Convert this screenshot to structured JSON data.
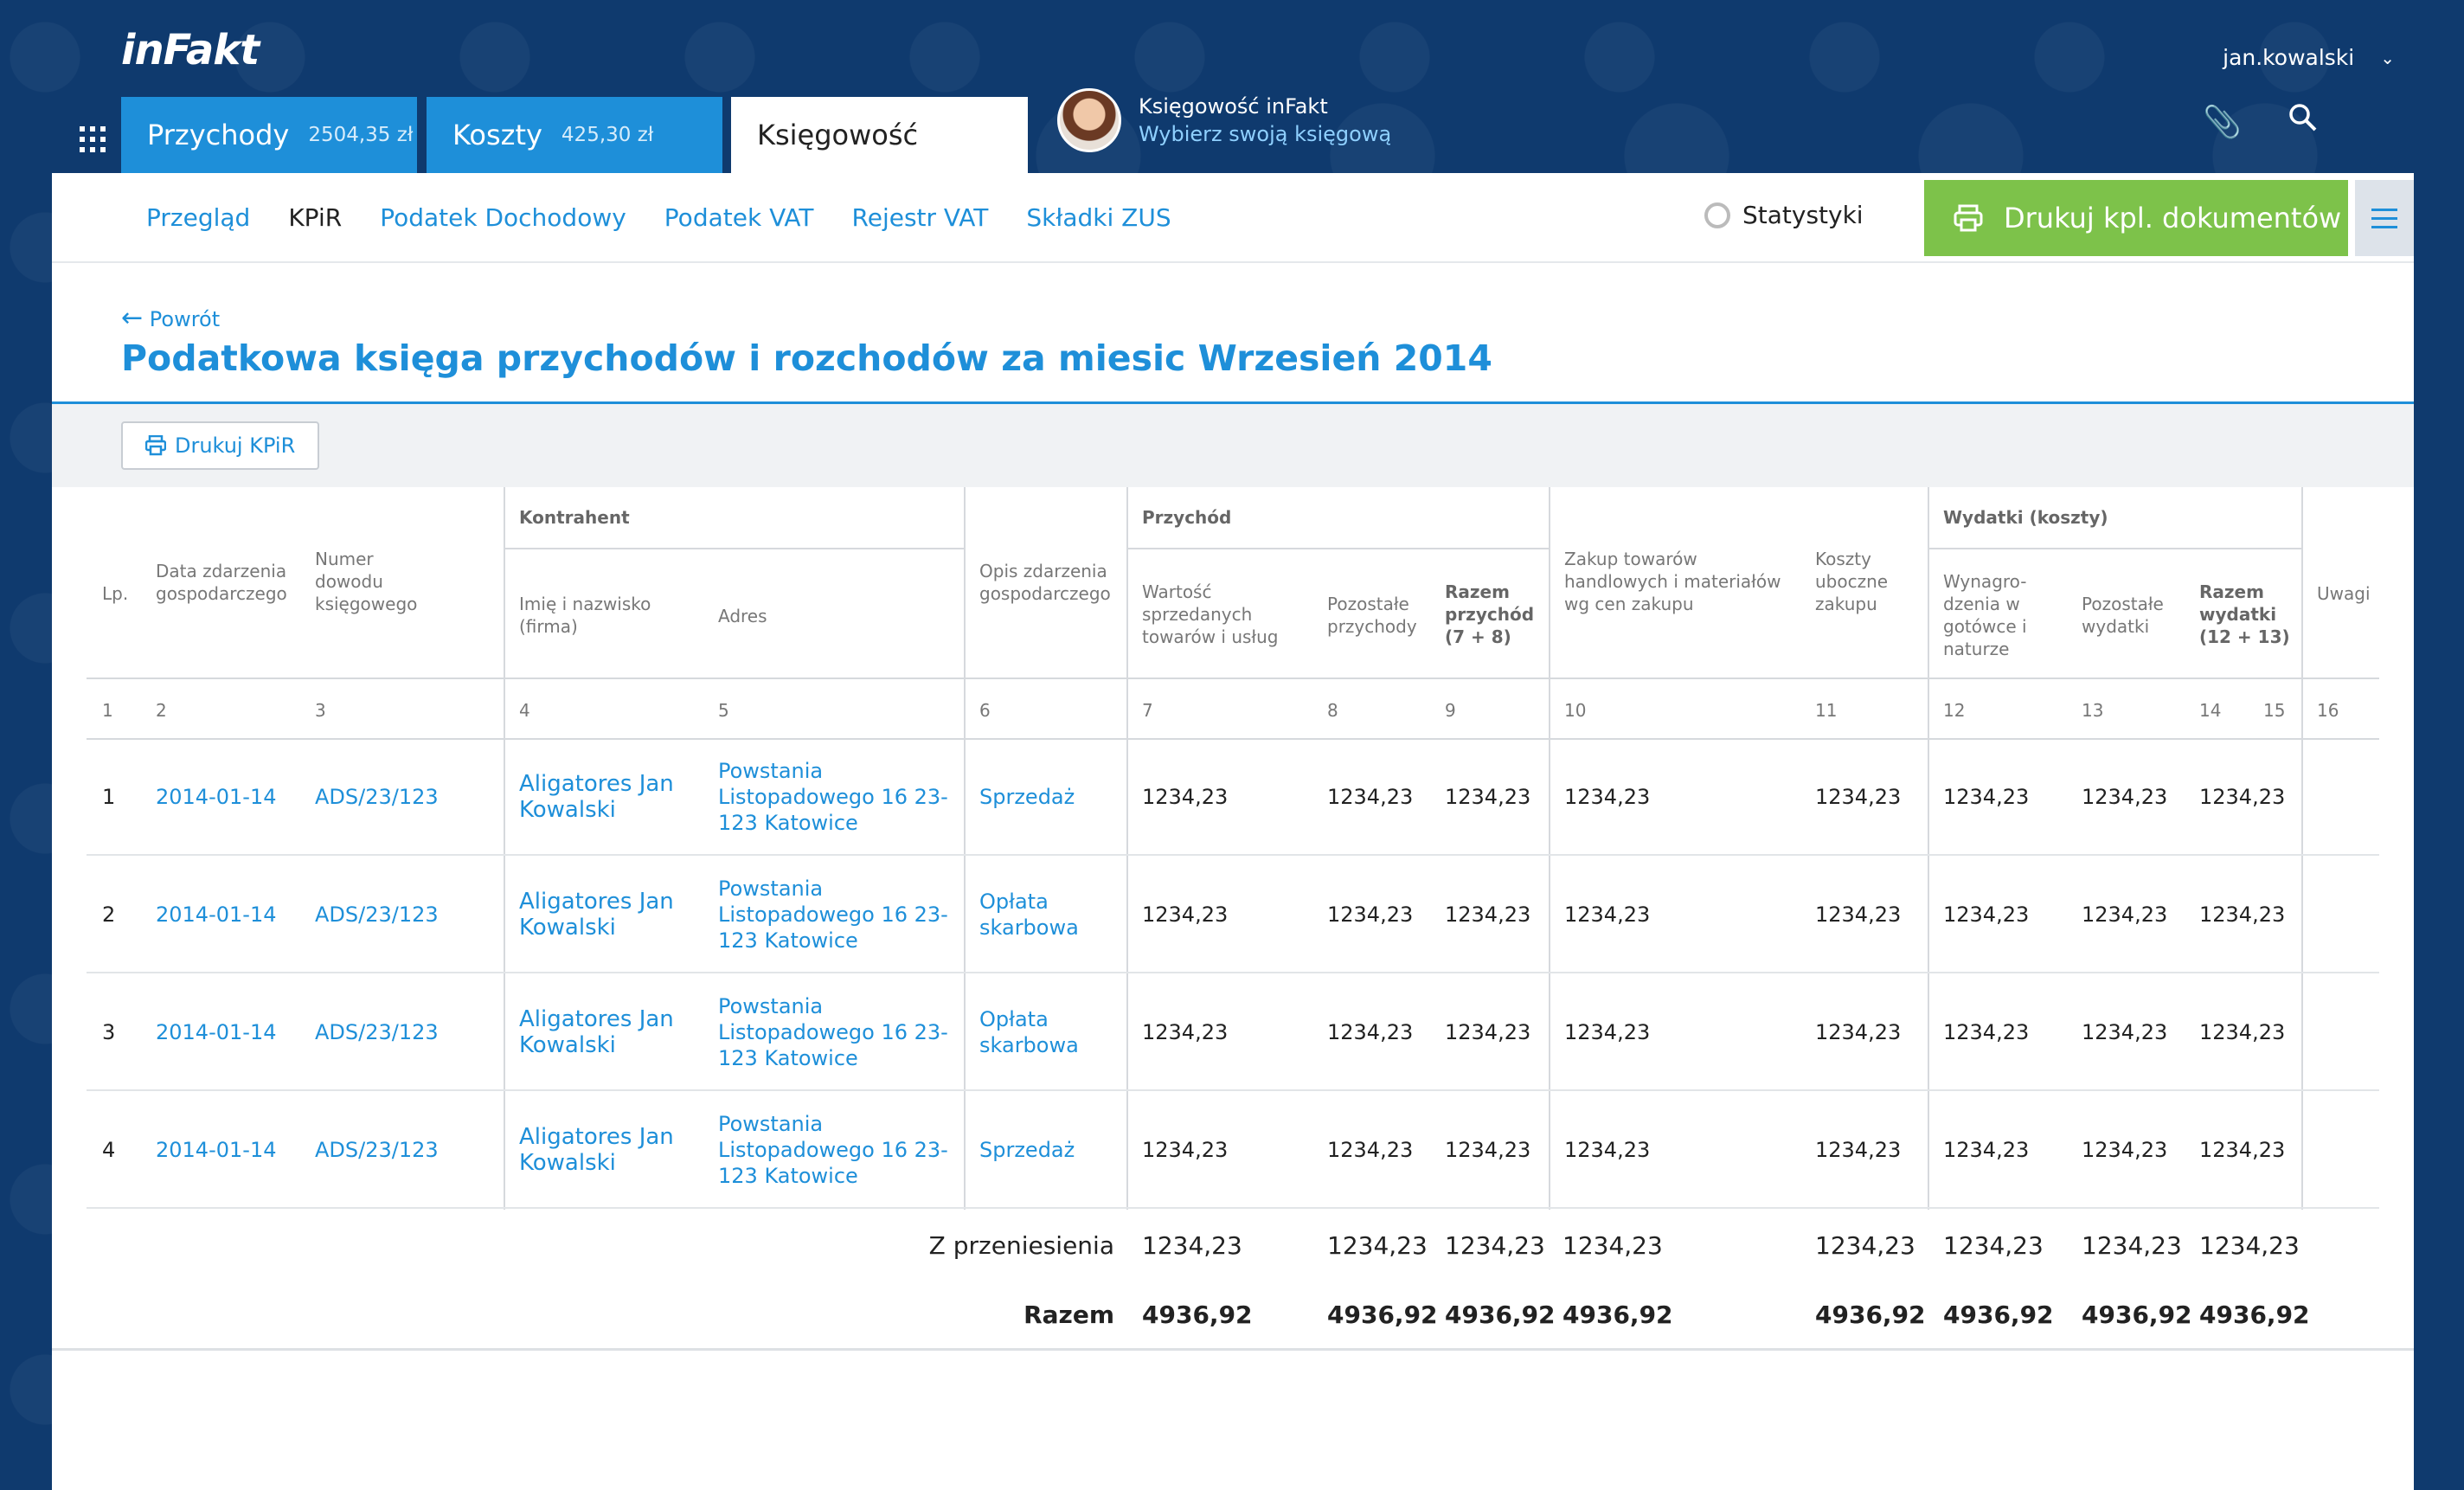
{
  "app": {
    "logo": "inFakt",
    "user": "jan.kowalski"
  },
  "tabs": [
    {
      "label": "Przychody",
      "amount": "2504,35 zł"
    },
    {
      "label": "Koszty",
      "amount": "425,30 zł"
    },
    {
      "label": "Księgowość"
    }
  ],
  "account": {
    "line1": "Księgowość inFakt",
    "line2": "Wybierz swoją księgową"
  },
  "subnav": [
    "Przegląd",
    "KPiR",
    "Podatek Dochodowy",
    "Podatek VAT",
    "Rejestr VAT",
    "Składki ZUS"
  ],
  "stats_label": "Statystyki",
  "print_docs_label": "Drukuj kpl. dokumentów",
  "back_label": "Powrót",
  "page_title": "Podatkowa księga przychodów i rozchodów za miesic Wrzesień 2014",
  "print_kpir_label": "Drukuj KPiR",
  "headers": {
    "lp": "Lp.",
    "date": "Data zdarzenia gospodarczego",
    "docnum": "Numer dowodu księgowego",
    "kontrahent": "Kontrahent",
    "name": "Imię i nazwisko (firma)",
    "address": "Adres",
    "desc": "Opis zdarzenia gospodarczego",
    "przychod": "Przychód",
    "sales": "Wartość sprzedanych towarów i usług",
    "other_income": "Pozostałe przychody",
    "total_income": "Razem przychód (7 + 8)",
    "purchase": "Zakup towarów handlowych i materiałów wg cen zakupu",
    "side_costs": "Koszty uboczne zakupu",
    "wydatki": "Wydatki (koszty)",
    "salaries": "Wynagro-dzenia w gotówce i naturze",
    "other_exp": "Pozostałe wydatki",
    "total_exp": "Razem wydatki (12 + 13)",
    "notes": "Uwagi"
  },
  "colnums": [
    "1",
    "2",
    "3",
    "4",
    "5",
    "6",
    "7",
    "8",
    "9",
    "10",
    "11",
    "12",
    "13",
    "14",
    "15",
    "16"
  ],
  "rows": [
    {
      "lp": "1",
      "date": "2014-01-14",
      "doc": "ADS/23/123",
      "name": "Aligatores Jan Kowalski",
      "addr": "Powstania Listopadowego 16 23-123 Katowice",
      "desc": "Sprzedaż",
      "v7": "1234,23",
      "v8": "1234,23",
      "v9": "1234,23",
      "v10": "1234,23",
      "v11": "1234,23",
      "v12": "1234,23",
      "v13": "1234,23",
      "v14": "1234,23"
    },
    {
      "lp": "2",
      "date": "2014-01-14",
      "doc": "ADS/23/123",
      "name": "Aligatores Jan Kowalski",
      "addr": "Powstania Listopadowego 16 23-123 Katowice",
      "desc": "Opłata skarbowa",
      "v7": "1234,23",
      "v8": "1234,23",
      "v9": "1234,23",
      "v10": "1234,23",
      "v11": "1234,23",
      "v12": "1234,23",
      "v13": "1234,23",
      "v14": "1234,23"
    },
    {
      "lp": "3",
      "date": "2014-01-14",
      "doc": "ADS/23/123",
      "name": "Aligatores Jan Kowalski",
      "addr": "Powstania Listopadowego 16 23-123 Katowice",
      "desc": "Opłata skarbowa",
      "v7": "1234,23",
      "v8": "1234,23",
      "v9": "1234,23",
      "v10": "1234,23",
      "v11": "1234,23",
      "v12": "1234,23",
      "v13": "1234,23",
      "v14": "1234,23"
    },
    {
      "lp": "4",
      "date": "2014-01-14",
      "doc": "ADS/23/123",
      "name": "Aligatores Jan Kowalski",
      "addr": "Powstania Listopadowego 16 23-123 Katowice",
      "desc": "Sprzedaż",
      "v7": "1234,23",
      "v8": "1234,23",
      "v9": "1234,23",
      "v10": "1234,23",
      "v11": "1234,23",
      "v12": "1234,23",
      "v13": "1234,23",
      "v14": "1234,23"
    }
  ],
  "carried": {
    "label": "Z przeniesienia",
    "v7": "1234,23",
    "v8": "1234,23",
    "v9": "1234,23",
    "v10": "1234,23",
    "v11": "1234,23",
    "v12": "1234,23",
    "v13": "1234,23",
    "v14": "1234,23"
  },
  "total": {
    "label": "Razem",
    "v7": "4936,92",
    "v8": "4936,92",
    "v9": "4936,92",
    "v10": "4936,92",
    "v11": "4936,92",
    "v12": "4936,92",
    "v13": "4936,92",
    "v14": "4936,92"
  }
}
